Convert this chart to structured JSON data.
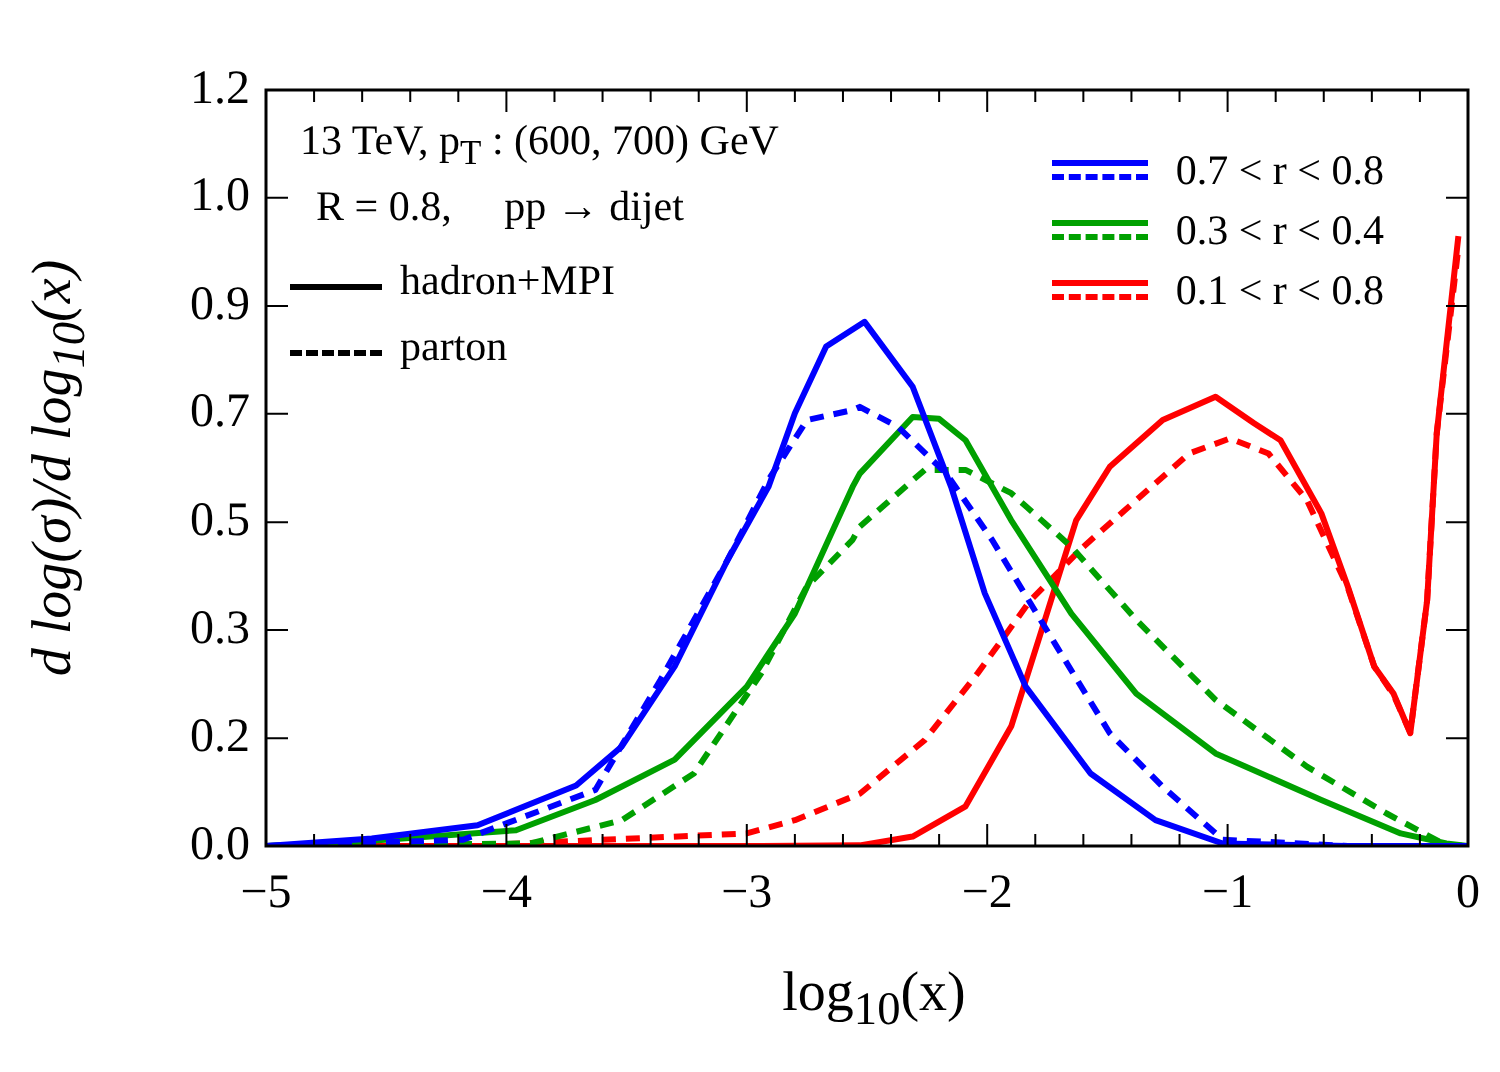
{
  "chart_data": {
    "type": "line",
    "xlabel": "log$_{10}$(x)",
    "ylabel": "d log(σ)/d log$_{10}$(x)",
    "annotations": [
      "13 TeV, p$_{T}$ : (600, 700) GeV",
      "R = 0.8,     pp → dijet",
      "hadron+MPI",
      "parton"
    ],
    "xlim": [
      -5,
      0
    ],
    "ylim": [
      0,
      1.2
    ],
    "xticks": [
      {
        "value": -5,
        "label": "−5"
      },
      {
        "value": -4.8,
        "label": null
      },
      {
        "value": -4.6,
        "label": null
      },
      {
        "value": -4.4,
        "label": null
      },
      {
        "value": -4.2,
        "label": null
      },
      {
        "value": -4,
        "label": "−4"
      },
      {
        "value": -3.8,
        "label": null
      },
      {
        "value": -3.6,
        "label": null
      },
      {
        "value": -3.4,
        "label": null
      },
      {
        "value": -3.2,
        "label": null
      },
      {
        "value": -3,
        "label": "−3"
      },
      {
        "value": -2.8,
        "label": null
      },
      {
        "value": -2.6,
        "label": null
      },
      {
        "value": -2.4,
        "label": null
      },
      {
        "value": -2.2,
        "label": null
      },
      {
        "value": -2,
        "label": "−2"
      },
      {
        "value": -1.8,
        "label": null
      },
      {
        "value": -1.6,
        "label": null
      },
      {
        "value": -1.4,
        "label": null
      },
      {
        "value": -1.2,
        "label": null
      },
      {
        "value": -1,
        "label": "−1"
      },
      {
        "value": -0.8,
        "label": null
      },
      {
        "value": -0.6,
        "label": null
      },
      {
        "value": -0.4,
        "label": null
      },
      {
        "value": -0.2,
        "label": null
      },
      0
    ],
    "yticks": [
      {
        "value": 0,
        "label": "0.0"
      },
      {
        "value": 0.171,
        "label": "0.2"
      },
      {
        "value": 0.343,
        "label": "0.3"
      },
      {
        "value": 0.514,
        "label": "0.5"
      },
      {
        "value": 0.686,
        "label": "0.7"
      },
      {
        "value": 0.857,
        "label": "0.9"
      },
      {
        "value": 1.029,
        "label": "1.0"
      },
      1.2
    ],
    "grid": false,
    "legend": "top right",
    "marker": "none",
    "series": [
      {
        "name": "0.7 < r < 0.8",
        "color": "#0000ff",
        "line_style": "solid",
        "x": [
          -5,
          -4.56,
          -4.12,
          -3.71,
          -3.52,
          -3.3,
          -3.08,
          -2.91,
          -2.8,
          -2.67,
          -2.51,
          -2.31,
          -2.15,
          -2.01,
          -1.84,
          -1.57,
          -1.3,
          -1.02,
          -0.5,
          0
        ],
        "values": [
          0,
          0.012,
          0.033,
          0.096,
          0.158,
          0.285,
          0.454,
          0.57,
          0.687,
          0.793,
          0.832,
          0.729,
          0.57,
          0.401,
          0.253,
          0.115,
          0.041,
          0.004,
          0,
          0
        ]
      },
      {
        "color": "#0000ff",
        "line_style": "dashed",
        "x": [
          -5,
          -4.18,
          -3.63,
          -3.36,
          -3.08,
          -2.91,
          -2.75,
          -2.56,
          -2.53,
          -2.37,
          -2.17,
          -1.98,
          -1.71,
          -1.49,
          -1.27,
          -1.02,
          -0.5,
          0
        ],
        "values": [
          0,
          0.01,
          0.089,
          0.263,
          0.454,
          0.581,
          0.676,
          0.692,
          0.697,
          0.665,
          0.591,
          0.486,
          0.316,
          0.179,
          0.094,
          0.01,
          0,
          0
        ]
      },
      {
        "name": "0.3 < r < 0.4",
        "color": "#00a000",
        "line_style": "solid",
        "x": [
          -5,
          -4.72,
          -3.96,
          -3.63,
          -3.3,
          -3,
          -2.8,
          -2.56,
          -2.53,
          -2.31,
          -2.2,
          -2.09,
          -1.9,
          -1.65,
          -1.38,
          -1.05,
          -0.61,
          -0.28,
          -0.09,
          0
        ],
        "values": [
          0,
          0.004,
          0.025,
          0.073,
          0.137,
          0.253,
          0.369,
          0.57,
          0.591,
          0.681,
          0.678,
          0.644,
          0.517,
          0.369,
          0.242,
          0.147,
          0.073,
          0.02,
          0.004,
          0
        ]
      },
      {
        "color": "#00a000",
        "line_style": "dashed",
        "x": [
          -5,
          -3.9,
          -3.52,
          -3.22,
          -2.94,
          -2.75,
          -2.56,
          -2.53,
          -2.26,
          -2.09,
          -1.9,
          -1.65,
          -1.38,
          -1.05,
          -0.67,
          -0.34,
          -0.09,
          0
        ],
        "values": [
          0,
          0.004,
          0.041,
          0.115,
          0.274,
          0.412,
          0.486,
          0.507,
          0.597,
          0.597,
          0.56,
          0.475,
          0.359,
          0.232,
          0.126,
          0.052,
          0.001,
          0
        ]
      },
      {
        "name": "0.1 < r < 0.8",
        "color": "#ff0000",
        "line_style": "solid",
        "x": [
          -5,
          -3,
          -2.53,
          -2.31,
          -2.09,
          -1.9,
          -1.76,
          -1.63,
          -1.49,
          -1.27,
          -1.05,
          -0.89,
          -0.78,
          -0.61,
          -0.5,
          -0.39,
          -0.31,
          -0.24,
          -0.17,
          -0.13,
          -0.04
        ],
        "values": [
          0,
          0,
          0.001,
          0.015,
          0.063,
          0.19,
          0.359,
          0.517,
          0.602,
          0.676,
          0.713,
          0.671,
          0.644,
          0.528,
          0.412,
          0.285,
          0.242,
          0.179,
          0.39,
          0.655,
          0.968
        ]
      },
      {
        "color": "#ff0000",
        "line_style": "dashed",
        "x": [
          -5,
          -4,
          -3,
          -2.8,
          -2.53,
          -2.26,
          -2.04,
          -1.82,
          -1.6,
          -1.38,
          -1.16,
          -0.99,
          -0.83,
          -0.67,
          -0.5,
          -0.39,
          -0.31,
          -0.24,
          -0.17,
          -0.13,
          -0.04
        ],
        "values": [
          0,
          0.003,
          0.02,
          0.041,
          0.083,
          0.168,
          0.274,
          0.39,
          0.475,
          0.549,
          0.623,
          0.647,
          0.623,
          0.549,
          0.41,
          0.285,
          0.24,
          0.18,
          0.39,
          0.655,
          0.95
        ]
      }
    ]
  }
}
